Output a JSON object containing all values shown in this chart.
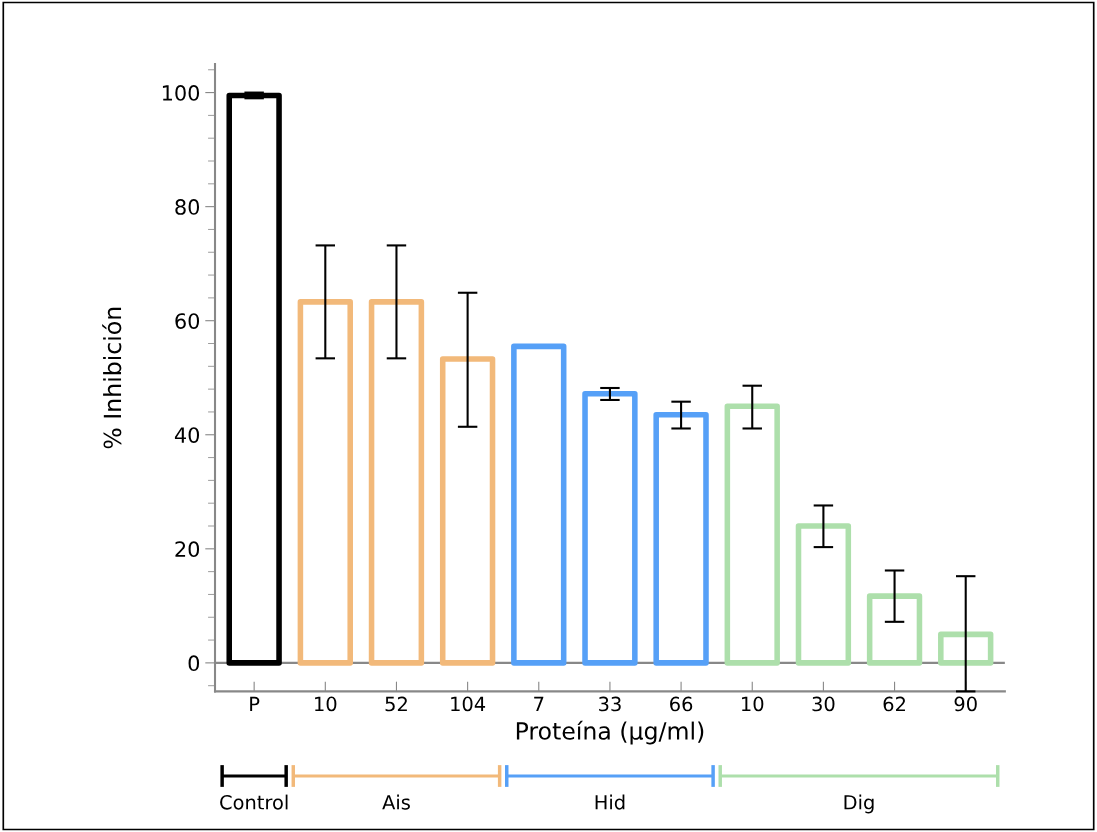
{
  "chart_data": {
    "type": "bar",
    "xlabel": "Proteína (μg/ml)",
    "ylabel": "% Inhibición",
    "categories": [
      "P",
      "10",
      "52",
      "104",
      "7",
      "33",
      "66",
      "10",
      "30",
      "62",
      "90"
    ],
    "series": [
      {
        "color": "#000000",
        "values": [
          99.5,
          null,
          null,
          null,
          null,
          null,
          null,
          null,
          null,
          null,
          null
        ],
        "errors": [
          0.5,
          null,
          null,
          null,
          null,
          null,
          null,
          null,
          null,
          null,
          null
        ]
      },
      {
        "color": "#f2b97a",
        "values": [
          null,
          63.3,
          63.3,
          53.3,
          null,
          null,
          null,
          null,
          null,
          null,
          null
        ],
        "errors": [
          null,
          [
            53.4,
            73.2
          ],
          [
            53.4,
            73.2
          ],
          [
            41.4,
            64.9
          ],
          null,
          null,
          null,
          null,
          null,
          null,
          null
        ]
      },
      {
        "color": "#56a0f7",
        "values": [
          null,
          null,
          null,
          null,
          55.5,
          47.2,
          43.5,
          null,
          null,
          null,
          null
        ],
        "errors": [
          null,
          null,
          null,
          null,
          null,
          [
            46.1,
            48.2
          ],
          [
            41.1,
            45.8
          ],
          null,
          null,
          null,
          null
        ]
      },
      {
        "color": "#addfab",
        "values": [
          null,
          null,
          null,
          null,
          null,
          null,
          null,
          45,
          24,
          11.7,
          5
        ],
        "errors": [
          null,
          null,
          null,
          null,
          null,
          null,
          null,
          [
            41.1,
            48.6
          ],
          [
            20.3,
            27.6
          ],
          [
            7.2,
            16.2
          ],
          [
            -5,
            15.2
          ]
        ]
      }
    ],
    "ylim": [
      -5,
      105
    ],
    "yticks": [
      0,
      20,
      40,
      60,
      80,
      100
    ],
    "ref_lines": [
      {
        "axis": "y",
        "value": 0,
        "color": "#888888"
      }
    ],
    "annotations": [
      "Control",
      "Ais",
      "Hid",
      "Dig"
    ],
    "grid": false
  }
}
